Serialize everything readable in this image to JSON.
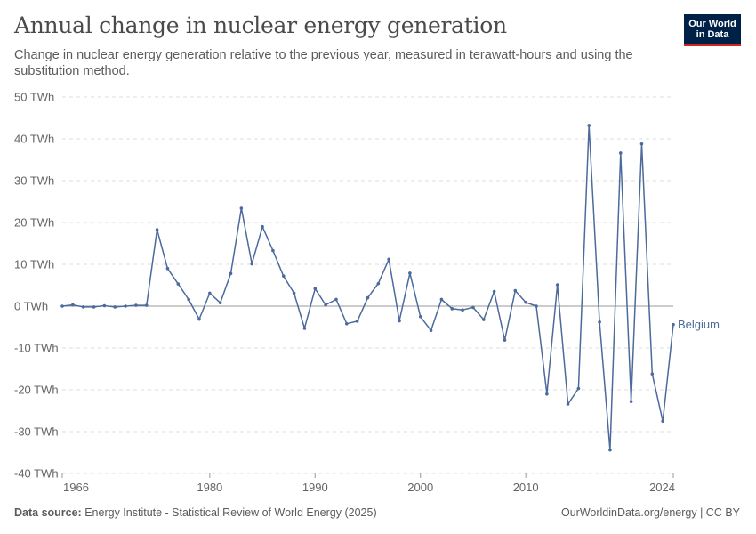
{
  "header": {
    "title": "Annual change in nuclear energy generation",
    "subtitle": "Change in nuclear energy generation relative to the previous year, measured in terawatt-hours and using the substitution method."
  },
  "logo": {
    "line1": "Our World",
    "line2": "in Data"
  },
  "footer": {
    "source_label": "Data source:",
    "source_text": "Energy Institute - Statistical Review of World Energy (2025)",
    "right_text": "OurWorldinData.org/energy | CC BY"
  },
  "colors": {
    "series": "#4c6a9c",
    "grid": "#dddddd",
    "zero": "#9a9a9a",
    "text": "#5b5b5b"
  },
  "chart_data": {
    "type": "line",
    "unit": "TWh",
    "ylim": [
      -40,
      50
    ],
    "yticks": [
      -40,
      -30,
      -20,
      -10,
      0,
      10,
      20,
      30,
      40,
      50
    ],
    "ytick_labels": [
      "-40 TWh",
      "-30 TWh",
      "-20 TWh",
      "-10 TWh",
      "0 TWh",
      "10 TWh",
      "20 TWh",
      "30 TWh",
      "40 TWh",
      "50 TWh"
    ],
    "xlim": [
      1966,
      2024
    ],
    "xticks": [
      1966,
      1980,
      1990,
      2000,
      2010,
      2024
    ],
    "xtick_labels": [
      "1966",
      "1980",
      "1990",
      "2000",
      "2010",
      "2024"
    ],
    "grid": true,
    "series": [
      {
        "name": "Belgium",
        "x": [
          1966,
          1967,
          1968,
          1969,
          1970,
          1971,
          1972,
          1973,
          1974,
          1975,
          1976,
          1977,
          1978,
          1979,
          1980,
          1981,
          1982,
          1983,
          1984,
          1985,
          1986,
          1987,
          1988,
          1989,
          1990,
          1991,
          1992,
          1993,
          1994,
          1995,
          1996,
          1997,
          1998,
          1999,
          2000,
          2001,
          2002,
          2003,
          2004,
          2005,
          2006,
          2007,
          2008,
          2009,
          2010,
          2011,
          2012,
          2013,
          2014,
          2015,
          2016,
          2017,
          2018,
          2019,
          2020,
          2021,
          2022,
          2023,
          2024
        ],
        "values": [
          0,
          0.3,
          -0.2,
          -0.2,
          0.1,
          -0.2,
          0,
          0.2,
          0.2,
          18.3,
          9,
          5.3,
          1.6,
          -3.1,
          3.1,
          0.8,
          7.8,
          23.4,
          10.1,
          19,
          13.3,
          7.2,
          3.1,
          -5.3,
          4.2,
          0.3,
          1.6,
          -4.2,
          -3.6,
          2,
          5.4,
          11.2,
          -3.5,
          7.9,
          -2.5,
          -5.8,
          1.6,
          -0.6,
          -0.9,
          -0.3,
          -3.2,
          3.5,
          -8.1,
          3.7,
          0.9,
          0,
          -21,
          5.1,
          -23.4,
          -19.7,
          43.2,
          -3.8,
          -34.4,
          36.6,
          -22.8,
          38.8,
          -16.2,
          -27.5,
          -4.4
        ]
      }
    ]
  }
}
